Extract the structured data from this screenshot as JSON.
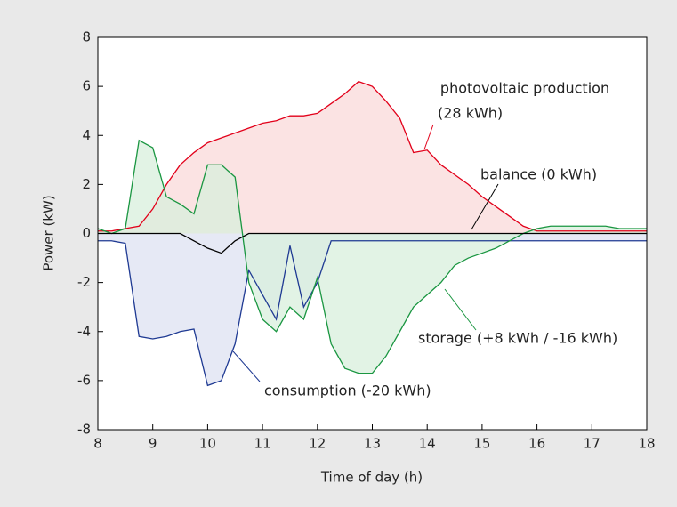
{
  "chart_data": {
    "type": "line",
    "xlabel": "Time of day  (h)",
    "ylabel": "Power  (kW)",
    "xlim": [
      8,
      18
    ],
    "ylim": [
      -8,
      8
    ],
    "xticks": [
      8,
      9,
      10,
      11,
      12,
      13,
      14,
      15,
      16,
      17,
      18
    ],
    "yticks": [
      -8,
      -6,
      -4,
      -2,
      0,
      2,
      4,
      6,
      8
    ],
    "x": [
      8,
      8.25,
      8.5,
      8.75,
      9,
      9.25,
      9.5,
      9.75,
      10,
      10.25,
      10.5,
      10.75,
      11,
      11.25,
      11.5,
      11.75,
      12,
      12.25,
      12.5,
      12.75,
      13,
      13.25,
      13.5,
      13.75,
      14,
      14.25,
      14.5,
      14.75,
      15,
      15.25,
      15.5,
      15.75,
      16,
      16.25,
      16.5,
      16.75,
      17,
      17.25,
      17.5,
      17.75,
      18
    ],
    "series": [
      {
        "name": "photovoltaic production",
        "color": "#e2001a",
        "fill": "#f9d9d9",
        "values": [
          0.1,
          0.1,
          0.2,
          0.3,
          1.0,
          2.0,
          2.8,
          3.3,
          3.7,
          3.9,
          4.1,
          4.3,
          4.5,
          4.6,
          4.8,
          4.8,
          4.9,
          5.3,
          5.7,
          6.2,
          6.0,
          5.4,
          4.7,
          3.3,
          3.4,
          2.8,
          2.4,
          2.0,
          1.5,
          1.1,
          0.7,
          0.3,
          0.1,
          0.1,
          0.1,
          0.1,
          0.1,
          0.1,
          0.1,
          0.1,
          0.1
        ]
      },
      {
        "name": "consumption",
        "color": "#1f3a93",
        "fill": "#dde2f1",
        "values": [
          -0.3,
          -0.3,
          -0.4,
          -4.2,
          -4.3,
          -4.2,
          -4.0,
          -3.9,
          -6.2,
          -6.0,
          -4.5,
          -1.5,
          -2.5,
          -3.5,
          -0.5,
          -3.0,
          -2.0,
          -0.3,
          -0.3,
          -0.3,
          -0.3,
          -0.3,
          -0.3,
          -0.3,
          -0.3,
          -0.3,
          -0.3,
          -0.3,
          -0.3,
          -0.3,
          -0.3,
          -0.3,
          -0.3,
          -0.3,
          -0.3,
          -0.3,
          -0.3,
          -0.3,
          -0.3,
          -0.3,
          -0.3
        ]
      },
      {
        "name": "storage",
        "color": "#1a9641",
        "fill": "#d8efdc",
        "values": [
          0.2,
          0.0,
          0.2,
          3.8,
          3.5,
          1.5,
          1.2,
          0.8,
          2.8,
          2.8,
          2.3,
          -2.0,
          -3.5,
          -4.0,
          -3.0,
          -3.5,
          -1.8,
          -4.5,
          -5.5,
          -5.7,
          -5.7,
          -5.0,
          -4.0,
          -3.0,
          -2.5,
          -2.0,
          -1.3,
          -1.0,
          -0.8,
          -0.6,
          -0.3,
          0.0,
          0.2,
          0.3,
          0.3,
          0.3,
          0.3,
          0.3,
          0.2,
          0.2,
          0.2
        ]
      },
      {
        "name": "balance",
        "color": "#000000",
        "fill": "none",
        "values": [
          0,
          0,
          0,
          0,
          0,
          0,
          0,
          -0.3,
          -0.6,
          -0.8,
          -0.3,
          0,
          0,
          0,
          0,
          0,
          0,
          0,
          0,
          0,
          0,
          0,
          0,
          0,
          0,
          0,
          0,
          0,
          0,
          0,
          0,
          0,
          0,
          0,
          0,
          0,
          0,
          0,
          0,
          0,
          0
        ]
      }
    ],
    "annotations": [
      "photovoltaic production",
      "(28 kWh)",
      "balance (0 kWh)",
      "storage (+8 kWh / -16 kWh)",
      "consumption (-20 kWh)"
    ]
  }
}
